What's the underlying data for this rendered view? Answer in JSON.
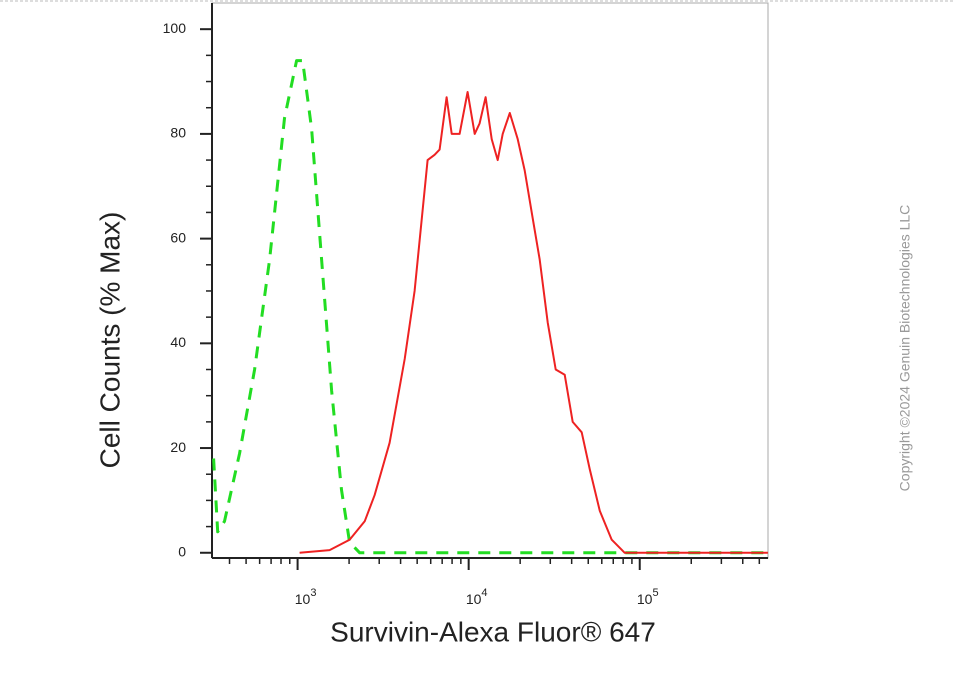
{
  "chart_data": {
    "type": "line",
    "xlabel": "Survivin-Alexa Fluor® 647",
    "ylabel": "Cell Counts (% Max)",
    "annotation": "Copyright ©2024 Genuin Biotechnologies LLC",
    "xscale": "log",
    "xlim": [
      316,
      562000
    ],
    "ylim": [
      -1,
      105
    ],
    "xticks": [
      {
        "value": 1000,
        "label": "10",
        "exponent": "3"
      },
      {
        "value": 10000,
        "label": "10",
        "exponent": "4"
      },
      {
        "value": 100000,
        "label": "10",
        "exponent": "5"
      }
    ],
    "yticks": [
      0,
      20,
      40,
      60,
      80,
      100
    ],
    "grid": false,
    "series": [
      {
        "color": "#22dd22",
        "style": "dashed",
        "x": [
          323,
          341,
          374,
          458,
          561,
          686,
          839,
          987,
          1070,
          1207,
          1381,
          1581,
          1807,
          2014,
          2306,
          561000
        ],
        "values": [
          18,
          4,
          6,
          19,
          35,
          56,
          83,
          94,
          94,
          81,
          56,
          31,
          12,
          2,
          0,
          0
        ]
      },
      {
        "color": "#ee2222",
        "style": "solid",
        "x": [
          1027,
          1538,
          2014,
          2466,
          2820,
          3451,
          4225,
          4832,
          5755,
          6324,
          6763,
          7432,
          7955,
          8856,
          9862,
          10840,
          11590,
          12560,
          13640,
          14780,
          15820,
          17390,
          19360,
          21250,
          23660,
          26000,
          28970,
          32280,
          36400,
          40550,
          45800,
          51000,
          58400,
          68550,
          81620,
          100000,
          561000
        ],
        "values": [
          0,
          0.5,
          2.5,
          6,
          11,
          21,
          37,
          50,
          75,
          76,
          77,
          87,
          80,
          80,
          88,
          80,
          82,
          87,
          79,
          75,
          80,
          84,
          79,
          73,
          64,
          56,
          44,
          35,
          34,
          25,
          23,
          16,
          8,
          2.5,
          0,
          0,
          0
        ]
      }
    ]
  }
}
